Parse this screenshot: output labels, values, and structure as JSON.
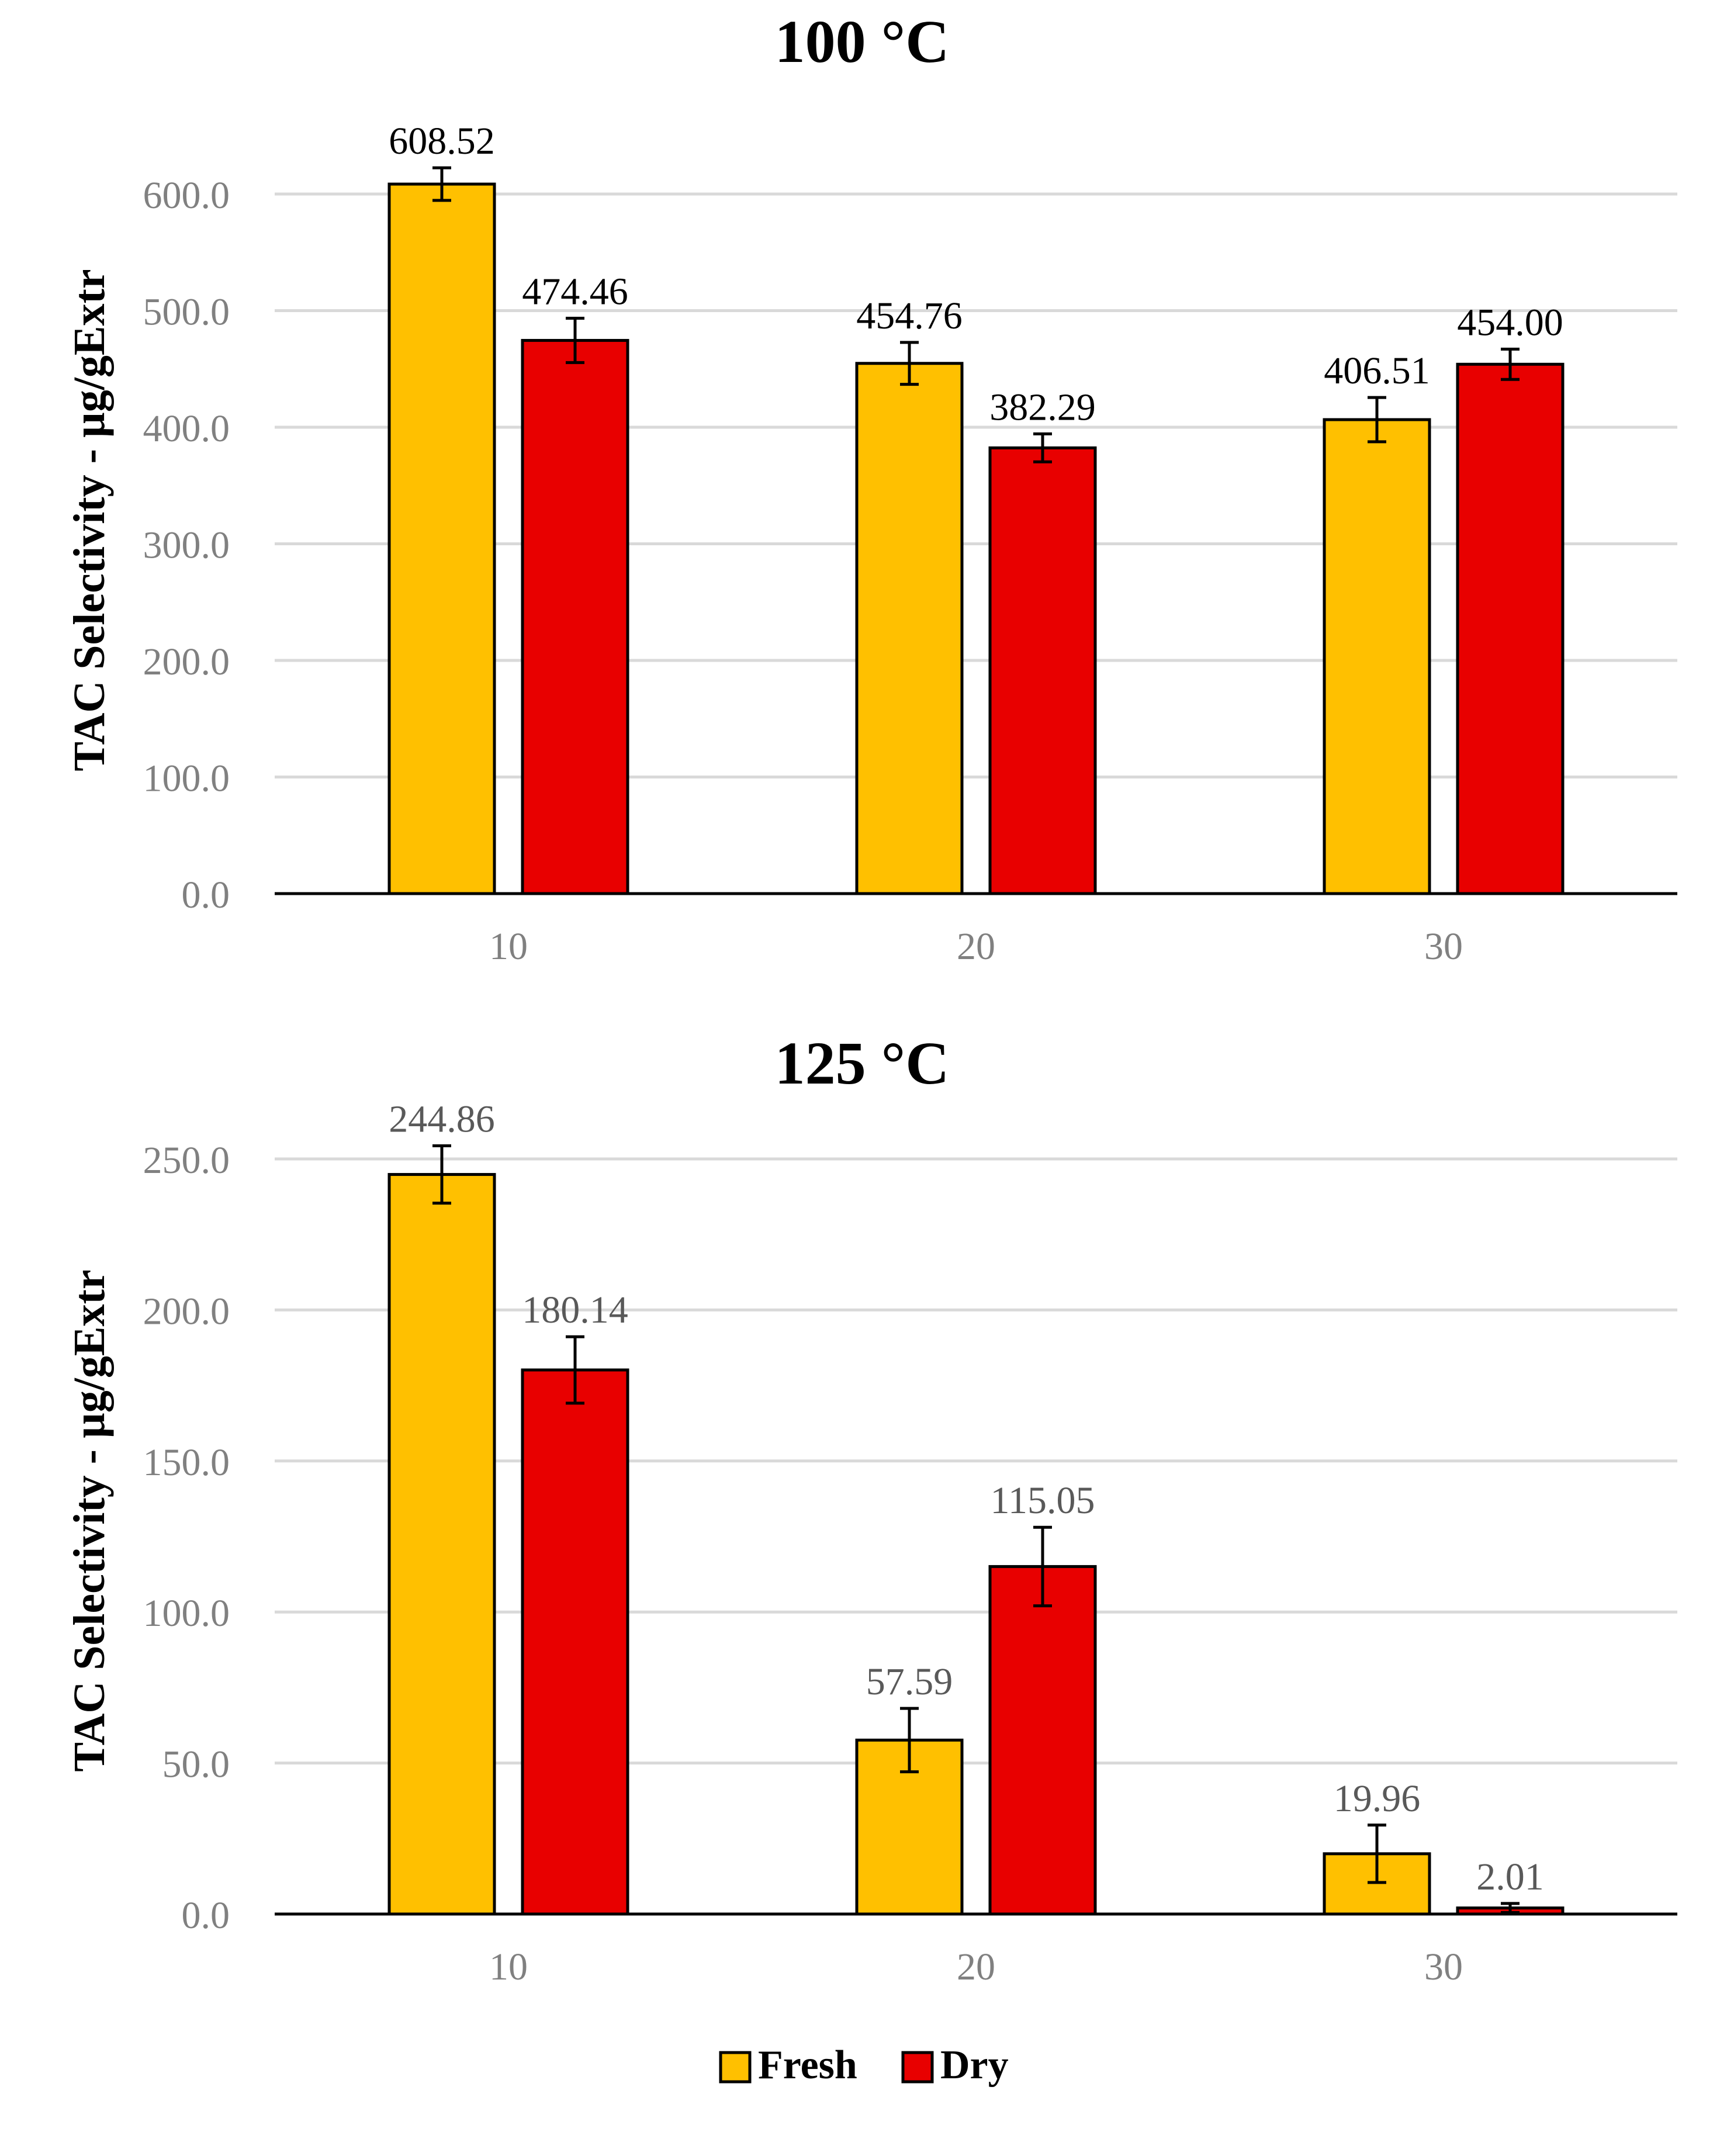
{
  "chart_data": [
    {
      "type": "bar",
      "title": "100 °C",
      "ylabel": "TAC Selectivity - µg/gExtr",
      "xlabel": "",
      "ylim": [
        0,
        600
      ],
      "yticks": [
        "0.0",
        "100.0",
        "200.0",
        "300.0",
        "400.0",
        "500.0",
        "600.0"
      ],
      "ytick_values": [
        0,
        100,
        200,
        300,
        400,
        500,
        600
      ],
      "categories": [
        "10",
        "20",
        "30"
      ],
      "series": [
        {
          "name": "Fresh",
          "color": "#FFC000",
          "values": [
            608.52,
            454.76,
            406.51
          ],
          "errors": [
            14,
            18,
            19
          ],
          "labels": [
            "608.52",
            "454.76",
            "406.51"
          ]
        },
        {
          "name": "Dry",
          "color": "#E80000",
          "values": [
            474.46,
            382.29,
            454.0
          ],
          "errors": [
            19,
            12,
            13
          ],
          "labels": [
            "474.46",
            "382.29",
            "454.00"
          ]
        }
      ],
      "label_color": "#000000",
      "grid": true
    },
    {
      "type": "bar",
      "title": "125 °C",
      "ylabel": "TAC Selectivity - µg/gExtr",
      "xlabel": "",
      "ylim": [
        0,
        250
      ],
      "yticks": [
        "0.0",
        "50.0",
        "100.0",
        "150.0",
        "200.0",
        "250.0"
      ],
      "ytick_values": [
        0,
        50,
        100,
        150,
        200,
        250
      ],
      "categories": [
        "10",
        "20",
        "30"
      ],
      "series": [
        {
          "name": "Fresh",
          "color": "#FFC000",
          "values": [
            244.86,
            57.59,
            19.96
          ],
          "errors": [
            9.5,
            10.5,
            9.5
          ],
          "labels": [
            "244.86",
            "57.59",
            "19.96"
          ]
        },
        {
          "name": "Dry",
          "color": "#E80000",
          "values": [
            180.14,
            115.05,
            2.01
          ],
          "errors": [
            11,
            13,
            1.5
          ],
          "labels": [
            "180.14",
            "115.05",
            "2.01"
          ]
        }
      ],
      "label_color": "#595959",
      "grid": true
    }
  ],
  "legend": [
    {
      "name": "Fresh",
      "color": "#FFC000"
    },
    {
      "name": "Dry",
      "color": "#E80000"
    }
  ]
}
